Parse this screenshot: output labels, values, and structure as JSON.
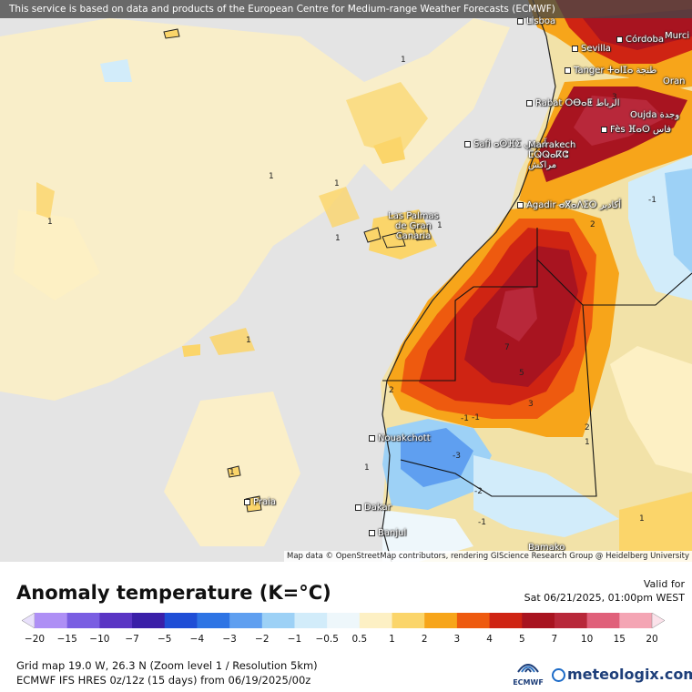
{
  "banner": "This service is based on data and products of the European Centre for Medium-range Weather Forecasts (ECMWF)",
  "attribution": "Map data © OpenStreetMap contributors, rendering GIScience Research Group @ Heidelberg University",
  "cities": [
    {
      "name": "Lisboa"
    },
    {
      "name": "Sevilla"
    },
    {
      "name": "Córdoba"
    },
    {
      "name": "Murci"
    },
    {
      "name": "Tanger ⵜⴰⵏⵊⴰ طنجة"
    },
    {
      "name": "Oran"
    },
    {
      "name": "Rabat ⵔⴱⴰⵟ الرباط"
    },
    {
      "name": "Oujda وجدة"
    },
    {
      "name": "Fès ⴼⴰⵙ فاس"
    },
    {
      "name": "Safi ⴰⵙⴼⵉ آسفي"
    },
    {
      "name": "Marrakech ⵎⵕⵕⴰⴽⵛ مراكش"
    },
    {
      "name": "Agadir ⴰⴳⴰⴷⵉⵔ أكادير"
    },
    {
      "name": "Las Palmas de Gran Canaria"
    },
    {
      "name": "Nouakchott"
    },
    {
      "name": "Dakar"
    },
    {
      "name": "Banjul"
    },
    {
      "name": "Praia"
    },
    {
      "name": "Bamako"
    }
  ],
  "contour_labels": [
    "1",
    "1",
    "1",
    "1",
    "1",
    "1",
    "1",
    "1",
    "1",
    "-1",
    "2",
    "2",
    "3",
    "7",
    "5",
    "3",
    "2",
    "1",
    "-1",
    "-3",
    "-2",
    "-1",
    "-1",
    "1"
  ],
  "legend": {
    "title": "Anomaly temperature (K=°C)",
    "valid_label": "Valid for",
    "valid_time": "Sat 06/21/2025, 01:00pm WEST",
    "ticks": [
      "−20",
      "−15",
      "−10",
      "−7",
      "−5",
      "−4",
      "−3",
      "−2",
      "−1",
      "−0.5",
      "0.5",
      "1",
      "2",
      "3",
      "4",
      "5",
      "7",
      "10",
      "15",
      "20"
    ],
    "colors": [
      "#ae8ff5",
      "#7a5ee2",
      "#5a35c4",
      "#3a1fa8",
      "#1f4ed6",
      "#2e74e4",
      "#5f9ff0",
      "#9dd1f6",
      "#d2ecfa",
      "#eef7fb",
      "#fdf0c4",
      "#fbd56a",
      "#f7a51a",
      "#ee5a0f",
      "#cf2413",
      "#a81420",
      "#b8283a",
      "#e0607a",
      "#f4a5b4"
    ],
    "grid_info": "Grid map 19.0 W, 26.3 N (Zoom level 1 / Resolution 5km)",
    "model_info": "ECMWF IFS HRES 0z/12z (15 days) from  06/19/2025/00z",
    "ecmwf_logo": "ECMWF",
    "brand": "meteologix.com"
  }
}
